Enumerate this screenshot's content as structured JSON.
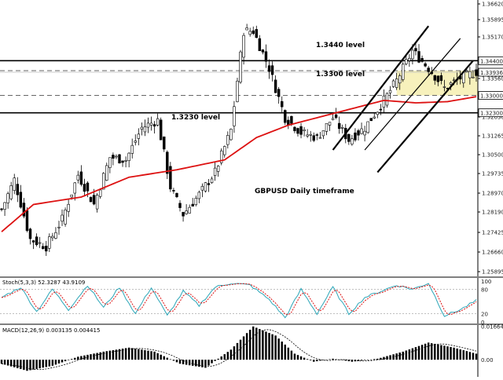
{
  "chart_data": {
    "type": "candlestick",
    "colors": {
      "candle": "#000000",
      "ma": "#dd1111",
      "highlight": "#f6efb0",
      "stoch_main": "#2aa6b8",
      "stoch_signal": "#dd1111",
      "macd_signal": "#000000"
    },
    "main": {
      "annotations": [
        "1.3440 level",
        "1.3300 level",
        "1.3230 level",
        "GBPUSD Daily timeframe"
      ],
      "price_ticks": [
        "1.36620",
        "1.35895",
        "1.35170",
        "1.33560",
        "1.32795",
        "1.32030",
        "1.31265",
        "1.30500",
        "1.29735",
        "1.28970",
        "1.28190",
        "1.27425",
        "1.26660",
        "1.25895"
      ],
      "level_badges": [
        "1.34400",
        "1.33936",
        "1.33000",
        "1.32300"
      ],
      "ylim": [
        1.257,
        1.3685
      ],
      "levels": {
        "solid": [
          1.344,
          1.323
        ],
        "dashed": [
          1.34,
          1.33
        ],
        "current_price": 1.33936
      },
      "highlight_zone": {
        "from": 1.33,
        "to": 1.34
      },
      "channel": [
        {
          "x": [
            104,
            134
          ],
          "y": [
            1.308,
            1.358
          ]
        },
        {
          "x": [
            114,
            144
          ],
          "y": [
            1.308,
            1.353
          ]
        },
        {
          "x": [
            118,
            148
          ],
          "y": [
            1.299,
            1.344
          ]
        }
      ],
      "bars": 150,
      "ohlc_anchors": [
        {
          "i": 0,
          "price": 1.284
        },
        {
          "i": 4,
          "price": 1.296
        },
        {
          "i": 9,
          "price": 1.272
        },
        {
          "i": 14,
          "price": 1.269
        },
        {
          "i": 19,
          "price": 1.28
        },
        {
          "i": 24,
          "price": 1.298
        },
        {
          "i": 29,
          "price": 1.286
        },
        {
          "i": 34,
          "price": 1.305
        },
        {
          "i": 39,
          "price": 1.304
        },
        {
          "i": 44,
          "price": 1.317
        },
        {
          "i": 49,
          "price": 1.32
        },
        {
          "i": 53,
          "price": 1.293
        },
        {
          "i": 57,
          "price": 1.282
        },
        {
          "i": 62,
          "price": 1.29
        },
        {
          "i": 67,
          "price": 1.299
        },
        {
          "i": 72,
          "price": 1.316
        },
        {
          "i": 76,
          "price": 1.356
        },
        {
          "i": 79,
          "price": 1.356
        },
        {
          "i": 84,
          "price": 1.341
        },
        {
          "i": 89,
          "price": 1.321
        },
        {
          "i": 94,
          "price": 1.315
        },
        {
          "i": 99,
          "price": 1.313
        },
        {
          "i": 104,
          "price": 1.321
        },
        {
          "i": 109,
          "price": 1.312
        },
        {
          "i": 114,
          "price": 1.317
        },
        {
          "i": 119,
          "price": 1.326
        },
        {
          "i": 124,
          "price": 1.336
        },
        {
          "i": 129,
          "price": 1.348
        },
        {
          "i": 134,
          "price": 1.341
        },
        {
          "i": 139,
          "price": 1.333
        },
        {
          "i": 144,
          "price": 1.337
        },
        {
          "i": 149,
          "price": 1.3395
        }
      ],
      "ma_anchors": [
        {
          "i": 0,
          "price": 1.275
        },
        {
          "i": 10,
          "price": 1.286
        },
        {
          "i": 25,
          "price": 1.289
        },
        {
          "i": 40,
          "price": 1.297
        },
        {
          "i": 55,
          "price": 1.3
        },
        {
          "i": 70,
          "price": 1.304
        },
        {
          "i": 80,
          "price": 1.313
        },
        {
          "i": 90,
          "price": 1.318
        },
        {
          "i": 105,
          "price": 1.323
        },
        {
          "i": 120,
          "price": 1.328
        },
        {
          "i": 130,
          "price": 1.327
        },
        {
          "i": 140,
          "price": 1.3275
        },
        {
          "i": 149,
          "price": 1.3295
        }
      ]
    },
    "stoch": {
      "label": "Stoch(5,3,3) 52.3287 43.9109",
      "ticks": [
        "100",
        "80",
        "20",
        "0"
      ],
      "ylim": [
        0,
        100
      ],
      "levels": [
        80,
        20
      ],
      "main_anchors": [
        {
          "i": 0,
          "v": 60
        },
        {
          "i": 6,
          "v": 85
        },
        {
          "i": 11,
          "v": 25
        },
        {
          "i": 16,
          "v": 80
        },
        {
          "i": 21,
          "v": 30
        },
        {
          "i": 27,
          "v": 90
        },
        {
          "i": 32,
          "v": 35
        },
        {
          "i": 37,
          "v": 85
        },
        {
          "i": 42,
          "v": 20
        },
        {
          "i": 47,
          "v": 85
        },
        {
          "i": 52,
          "v": 15
        },
        {
          "i": 57,
          "v": 75
        },
        {
          "i": 62,
          "v": 40
        },
        {
          "i": 67,
          "v": 85
        },
        {
          "i": 72,
          "v": 95
        },
        {
          "i": 78,
          "v": 90
        },
        {
          "i": 84,
          "v": 55
        },
        {
          "i": 89,
          "v": 10
        },
        {
          "i": 94,
          "v": 80
        },
        {
          "i": 99,
          "v": 20
        },
        {
          "i": 104,
          "v": 85
        },
        {
          "i": 109,
          "v": 20
        },
        {
          "i": 114,
          "v": 60
        },
        {
          "i": 119,
          "v": 75
        },
        {
          "i": 124,
          "v": 90
        },
        {
          "i": 129,
          "v": 80
        },
        {
          "i": 134,
          "v": 95
        },
        {
          "i": 139,
          "v": 15
        },
        {
          "i": 144,
          "v": 30
        },
        {
          "i": 149,
          "v": 52
        }
      ]
    },
    "macd": {
      "label": "MACD(12,26,9) 0.003135 0.004415",
      "ticks": [
        "0.016647",
        "0.00"
      ],
      "ylim": [
        -0.0085,
        0.0172
      ],
      "hist_anchors": [
        {
          "i": 0,
          "v": -0.002
        },
        {
          "i": 8,
          "v": -0.0055
        },
        {
          "i": 16,
          "v": -0.003
        },
        {
          "i": 24,
          "v": 0.0015
        },
        {
          "i": 32,
          "v": 0.004
        },
        {
          "i": 40,
          "v": 0.006
        },
        {
          "i": 48,
          "v": 0.004
        },
        {
          "i": 56,
          "v": -0.002
        },
        {
          "i": 64,
          "v": -0.004
        },
        {
          "i": 72,
          "v": 0.005
        },
        {
          "i": 79,
          "v": 0.0165
        },
        {
          "i": 86,
          "v": 0.012
        },
        {
          "i": 92,
          "v": 0.003
        },
        {
          "i": 98,
          "v": -0.001
        },
        {
          "i": 104,
          "v": 0.0005
        },
        {
          "i": 110,
          "v": -0.001
        },
        {
          "i": 118,
          "v": 0.0005
        },
        {
          "i": 126,
          "v": 0.004
        },
        {
          "i": 134,
          "v": 0.0085
        },
        {
          "i": 142,
          "v": 0.006
        },
        {
          "i": 149,
          "v": 0.003
        }
      ]
    }
  }
}
